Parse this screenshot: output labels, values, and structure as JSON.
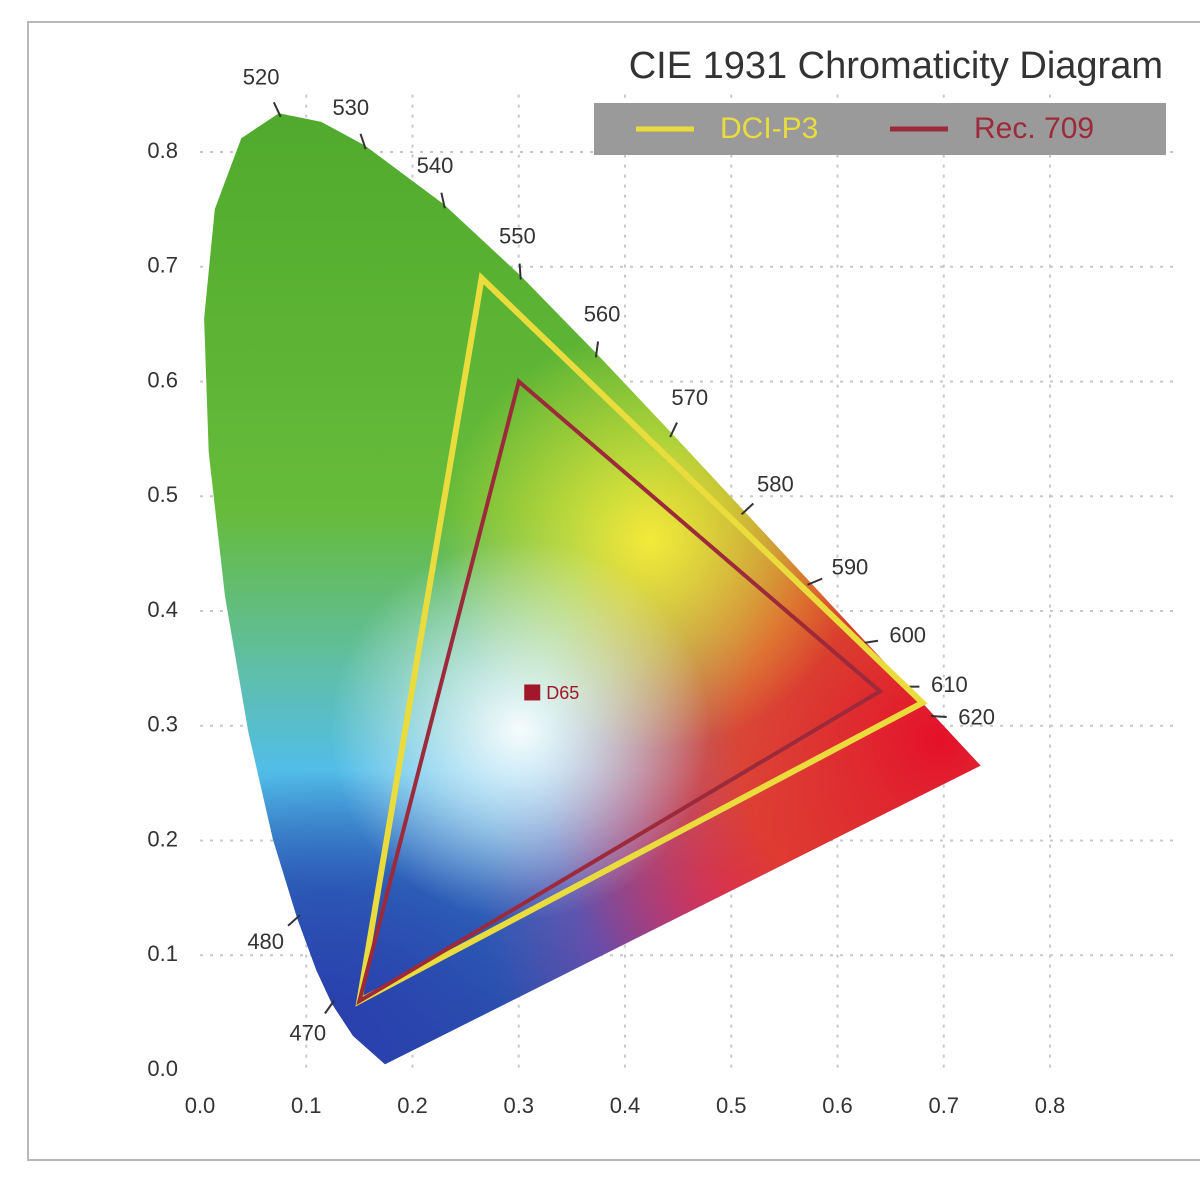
{
  "chart_data": {
    "type": "chromaticity",
    "title": "CIE 1931 Chromaticity Diagram",
    "xlim": [
      0,
      0.92
    ],
    "ylim": [
      0,
      0.85
    ],
    "xticks": [
      {
        "value": 0,
        "label": "0.0"
      },
      0.1,
      0.2,
      0.3,
      0.4,
      0.5,
      0.6,
      0.7,
      0.8
    ],
    "yticks": [
      {
        "value": 0,
        "label": "0.0"
      },
      0.1,
      0.2,
      0.3,
      0.4,
      0.5,
      0.6,
      0.7,
      0.8
    ],
    "grid": true,
    "legend": "top-right",
    "locus": {
      "x": [
        0.1741,
        0.144,
        0.1241,
        0.1096,
        0.0913,
        0.0687,
        0.0454,
        0.0235,
        0.0082,
        0.0039,
        0.0139,
        0.0389,
        0.0743,
        0.1142,
        0.1547,
        0.2296,
        0.3016,
        0.3731,
        0.4441,
        0.5125,
        0.5752,
        0.627,
        0.6658,
        0.6915,
        0.7347
      ],
      "y": [
        0.005,
        0.0297,
        0.0578,
        0.0868,
        0.1327,
        0.2007,
        0.295,
        0.4127,
        0.5384,
        0.6548,
        0.7502,
        0.812,
        0.8338,
        0.8262,
        0.8059,
        0.7543,
        0.6923,
        0.6245,
        0.5547,
        0.4866,
        0.4242,
        0.3725,
        0.334,
        0.3083,
        0.2653
      ]
    },
    "wavelengths": {
      "labels": [
        470,
        480,
        520,
        530,
        540,
        550,
        560,
        570,
        580,
        590,
        600,
        610,
        620
      ],
      "x": [
        0.1241,
        0.0913,
        0.0743,
        0.1547,
        0.2296,
        0.3016,
        0.3731,
        0.4441,
        0.5125,
        0.5752,
        0.627,
        0.6658,
        0.6915
      ],
      "y": [
        0.0578,
        0.1327,
        0.8338,
        0.8059,
        0.7543,
        0.6923,
        0.6245,
        0.5547,
        0.4866,
        0.4242,
        0.3725,
        0.334,
        0.3083
      ]
    },
    "series": [
      {
        "name": "DCI-P3",
        "color": "#e9dc3c",
        "x": [
          0.68,
          0.265,
          0.15
        ],
        "y": [
          0.32,
          0.69,
          0.06
        ]
      },
      {
        "name": "Rec. 709",
        "color": "#9c2a3a",
        "x": [
          0.64,
          0.3,
          0.15
        ],
        "y": [
          0.33,
          0.6,
          0.06
        ]
      }
    ],
    "points": [
      {
        "name": "D65",
        "color": "#a3172b",
        "x": 0.3127,
        "y": 0.329
      }
    ]
  }
}
